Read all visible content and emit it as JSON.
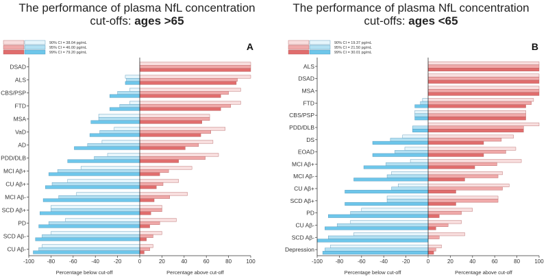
{
  "chart_data": [
    {
      "type": "bar",
      "panel": "A",
      "title_line1": "The performance of plasma NfL concentration",
      "title_prefix": "cut-offs: ",
      "title_bold": "ages >65",
      "xlim": [
        -100,
        100
      ],
      "xticks": [
        -100,
        -80,
        -60,
        -40,
        -20,
        0,
        20,
        40,
        60,
        80,
        100
      ],
      "xlabel_left": "Percentage below cut-off",
      "xlabel_right": "Percentage above cut-off",
      "legend": [
        "90% CI = 38.04 pg/mL",
        "95% CI = 46.00 pg/mL",
        "99% CI = 79.20 pg/mL"
      ],
      "colors": {
        "red": [
          "#f8dede",
          "#f0aaaa",
          "#e06d6d"
        ],
        "blue": [
          "#e6f5fb",
          "#b3e0f2",
          "#6ec6ea"
        ]
      },
      "categories": [
        "DSAD",
        "ALS",
        "CBS/PSP",
        "FTD",
        "MSA",
        "VaD",
        "AD",
        "PDD/DLB",
        "MCI Aβ+",
        "CU Aβ+",
        "MCI Aβ-",
        "SCD Aβ+",
        "PD",
        "SCD Aβ-",
        "CU Aβ-"
      ],
      "series": [
        {
          "name": "90% CI = 38.04 pg/mL",
          "above": [
            100,
            100,
            91,
            91,
            63,
            77,
            66,
            71,
            47,
            35,
            43,
            20,
            33,
            20,
            12
          ],
          "below": [
            0,
            -13,
            -9,
            -9,
            -37,
            -23,
            -34,
            -29,
            -53,
            -65,
            -57,
            -80,
            -67,
            -80,
            -88
          ]
        },
        {
          "name": "95% CI = 46.00 pg/mL",
          "above": [
            100,
            88,
            80,
            82,
            63,
            64,
            53,
            59,
            26,
            21,
            27,
            20,
            18,
            12,
            9
          ],
          "below": [
            0,
            -12,
            -20,
            -18,
            -37,
            -36,
            -47,
            -41,
            -74,
            -79,
            -73,
            -80,
            -82,
            -88,
            -91
          ]
        },
        {
          "name": "99% CI = 79.20 pg/mL",
          "above": [
            100,
            87,
            73,
            73,
            56,
            55,
            41,
            35,
            18,
            15,
            13,
            10,
            9,
            6,
            4
          ],
          "below": [
            0,
            -13,
            -27,
            -27,
            -44,
            -45,
            -59,
            -65,
            -82,
            -85,
            -87,
            -90,
            -91,
            -94,
            -96
          ]
        }
      ]
    },
    {
      "type": "bar",
      "panel": "B",
      "title_line1": "The performance of plasma NfL concentration",
      "title_prefix": "cut-offs: ",
      "title_bold": "ages <65",
      "xlim": [
        -100,
        100
      ],
      "xticks": [
        -100,
        -80,
        -60,
        -40,
        -20,
        0,
        20,
        40,
        60,
        80,
        100
      ],
      "xlabel_left": "Percentage below cut-off",
      "xlabel_right": "Percentage above cut-off",
      "legend": [
        "90% CI = 19.37 pg/mL",
        "95% CI = 21.50 pg/mL",
        "99% CI = 30.01 pg/mL"
      ],
      "colors": {
        "red": [
          "#f8dede",
          "#f0aaaa",
          "#e06d6d"
        ],
        "blue": [
          "#e6f5fb",
          "#b3e0f2",
          "#6ec6ea"
        ]
      },
      "categories": [
        "ALS",
        "DSAD",
        "MSA",
        "FTD",
        "CBS/PSP",
        "PDD/DLB",
        "DS",
        "EOAD",
        "MCI Aβ+",
        "MCI Aβ-",
        "CU Aβ+",
        "SCD Aβ+",
        "PD",
        "CU Aβ-",
        "SCD Aβ-",
        "Depression"
      ],
      "series": [
        {
          "name": "90% CI = 19.37 pg/mL",
          "above": [
            100,
            100,
            100,
            95,
            88,
            100,
            77,
            79,
            84,
            67,
            73,
            63,
            40,
            30,
            33,
            12
          ],
          "below": [
            0,
            0,
            0,
            -5,
            -12,
            0,
            -23,
            -21,
            -16,
            -33,
            -27,
            -37,
            -60,
            -70,
            -67,
            -88
          ]
        },
        {
          "name": "95% CI = 21.50 pg/mL",
          "above": [
            100,
            100,
            100,
            93,
            88,
            86,
            66,
            70,
            62,
            63,
            67,
            63,
            30,
            18,
            10,
            7
          ],
          "below": [
            0,
            0,
            0,
            -7,
            -12,
            -14,
            -34,
            -30,
            -38,
            -37,
            -33,
            -37,
            -70,
            -82,
            -90,
            -93
          ]
        },
        {
          "name": "99% CI = 30.01 pg/mL",
          "above": [
            100,
            100,
            100,
            88,
            88,
            86,
            50,
            50,
            42,
            33,
            25,
            25,
            10,
            7,
            0,
            5
          ],
          "below": [
            0,
            0,
            0,
            -12,
            -12,
            -14,
            -50,
            -50,
            -58,
            -67,
            -75,
            -75,
            -90,
            -93,
            -100,
            -95
          ]
        }
      ]
    }
  ]
}
